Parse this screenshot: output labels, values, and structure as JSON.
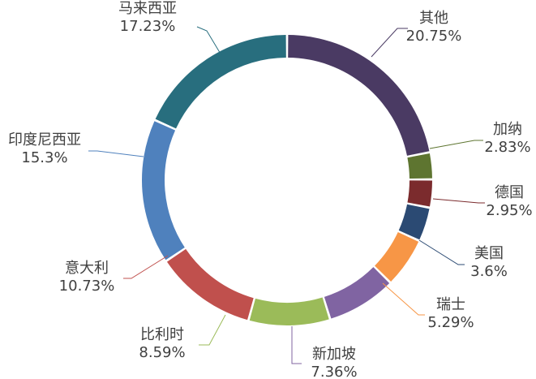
{
  "chart_data": {
    "type": "pie",
    "variant": "donut",
    "title": "",
    "legend": "none",
    "series": [
      {
        "values": [
          {
            "label": "其他",
            "value": 20.75,
            "display": "20.75%",
            "color": "#4a3a63"
          },
          {
            "label": "加纳",
            "value": 2.83,
            "display": "2.83%",
            "color": "#5e7530"
          },
          {
            "label": "德国",
            "value": 2.95,
            "display": "2.95%",
            "color": "#7b2b2d"
          },
          {
            "label": "美国",
            "value": 3.6,
            "display": "3.6%",
            "color": "#2b4a73"
          },
          {
            "label": "瑞士",
            "value": 5.29,
            "display": "5.29%",
            "color": "#f79646"
          },
          {
            "label": "新加坡",
            "value": 7.36,
            "display": "7.36%",
            "color": "#4bacc6"
          },
          {
            "label": "比利时",
            "value": 8.59,
            "display": "8.59%",
            "color": "#8064a2"
          },
          {
            "label": "意大利",
            "value": 10.73,
            "display": "10.73%",
            "color": "#9bbb59"
          },
          {
            "label": "印度尼西亚",
            "value": 15.3,
            "display": "15.3%",
            "color": "#c0504d"
          },
          {
            "label": "马来西亚",
            "value": 17.23,
            "display": "17.23%",
            "color": "#4f81bd"
          }
        ]
      }
    ]
  },
  "label_colors": {
    "其他": "#4a3a63",
    "加纳": "#5e7530",
    "德国": "#7b2b2d",
    "美国": "#2b4a73",
    "瑞士": "#f79646",
    "新加坡": "#4bacc6",
    "比利时": "#8064a2",
    "意大利": "#9bbb59",
    "印度尼西亚": "#c0504d",
    "马来西亚": "#4f81bd"
  }
}
